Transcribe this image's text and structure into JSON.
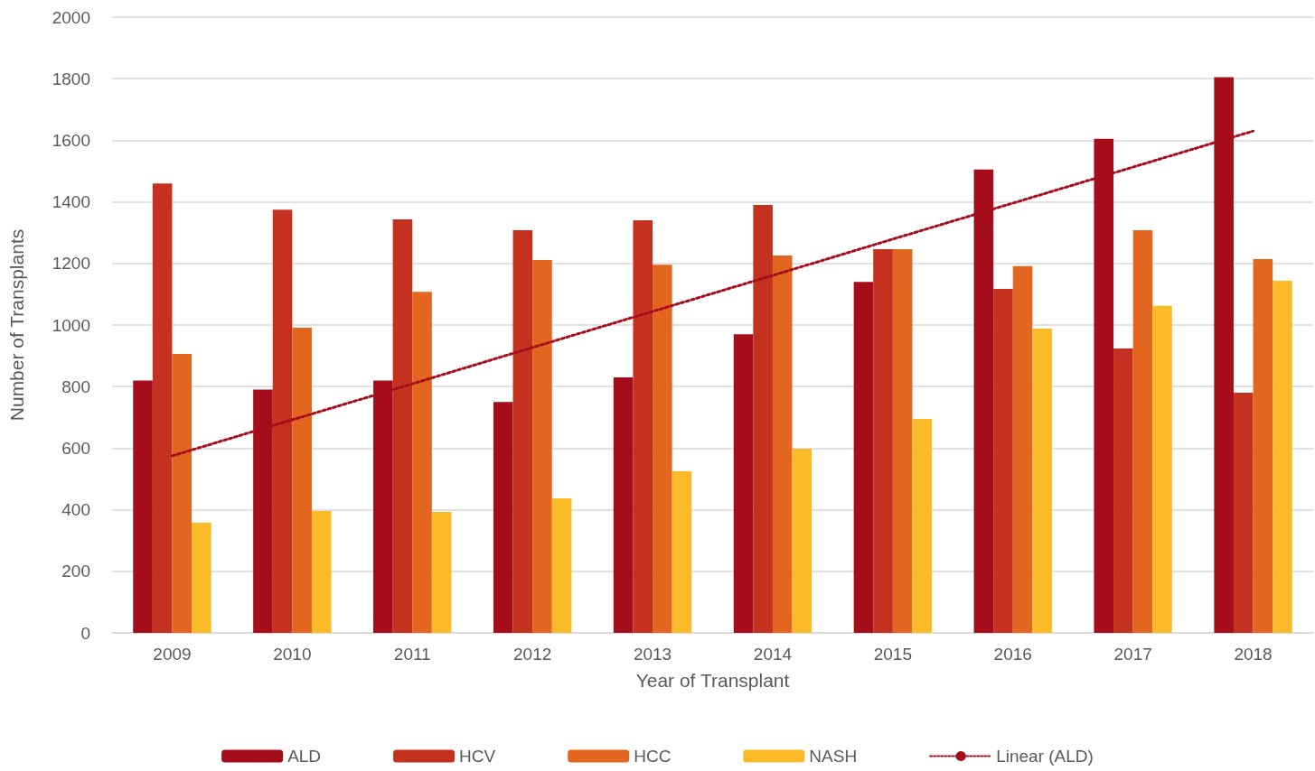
{
  "chart_data": {
    "type": "bar",
    "xlabel": "Year of Transplant",
    "ylabel": "Number of Transplants",
    "categories": [
      "2009",
      "2010",
      "2011",
      "2012",
      "2013",
      "2014",
      "2015",
      "2016",
      "2017",
      "2018"
    ],
    "series": [
      {
        "name": "ALD",
        "color": "#a50d1b",
        "values": [
          820,
          790,
          820,
          750,
          830,
          970,
          1140,
          1505,
          1605,
          1805
        ]
      },
      {
        "name": "HCV",
        "color": "#c4311f",
        "values": [
          1460,
          1375,
          1343,
          1308,
          1340,
          1390,
          1246,
          1117,
          924,
          780
        ]
      },
      {
        "name": "HCC",
        "color": "#e2661f",
        "values": [
          906,
          991,
          1108,
          1211,
          1196,
          1226,
          1246,
          1191,
          1308,
          1214
        ]
      },
      {
        "name": "NASH",
        "color": "#fbbb28",
        "values": [
          358,
          396,
          393,
          437,
          525,
          598,
          695,
          988,
          1062,
          1144
        ]
      },
      {
        "name": "Linear (ALD)",
        "type": "line",
        "color": "#a50d1b",
        "line_style": "dotted",
        "marker": "none",
        "values": [
          575,
          692,
          809,
          927,
          1044,
          1161,
          1279,
          1396,
          1513,
          1630
        ]
      }
    ],
    "ylim": [
      0,
      2000
    ],
    "yticks": [
      0,
      200,
      400,
      600,
      800,
      1000,
      1200,
      1400,
      1600,
      1800,
      2000
    ],
    "grid": "y",
    "legend": "bottom"
  }
}
